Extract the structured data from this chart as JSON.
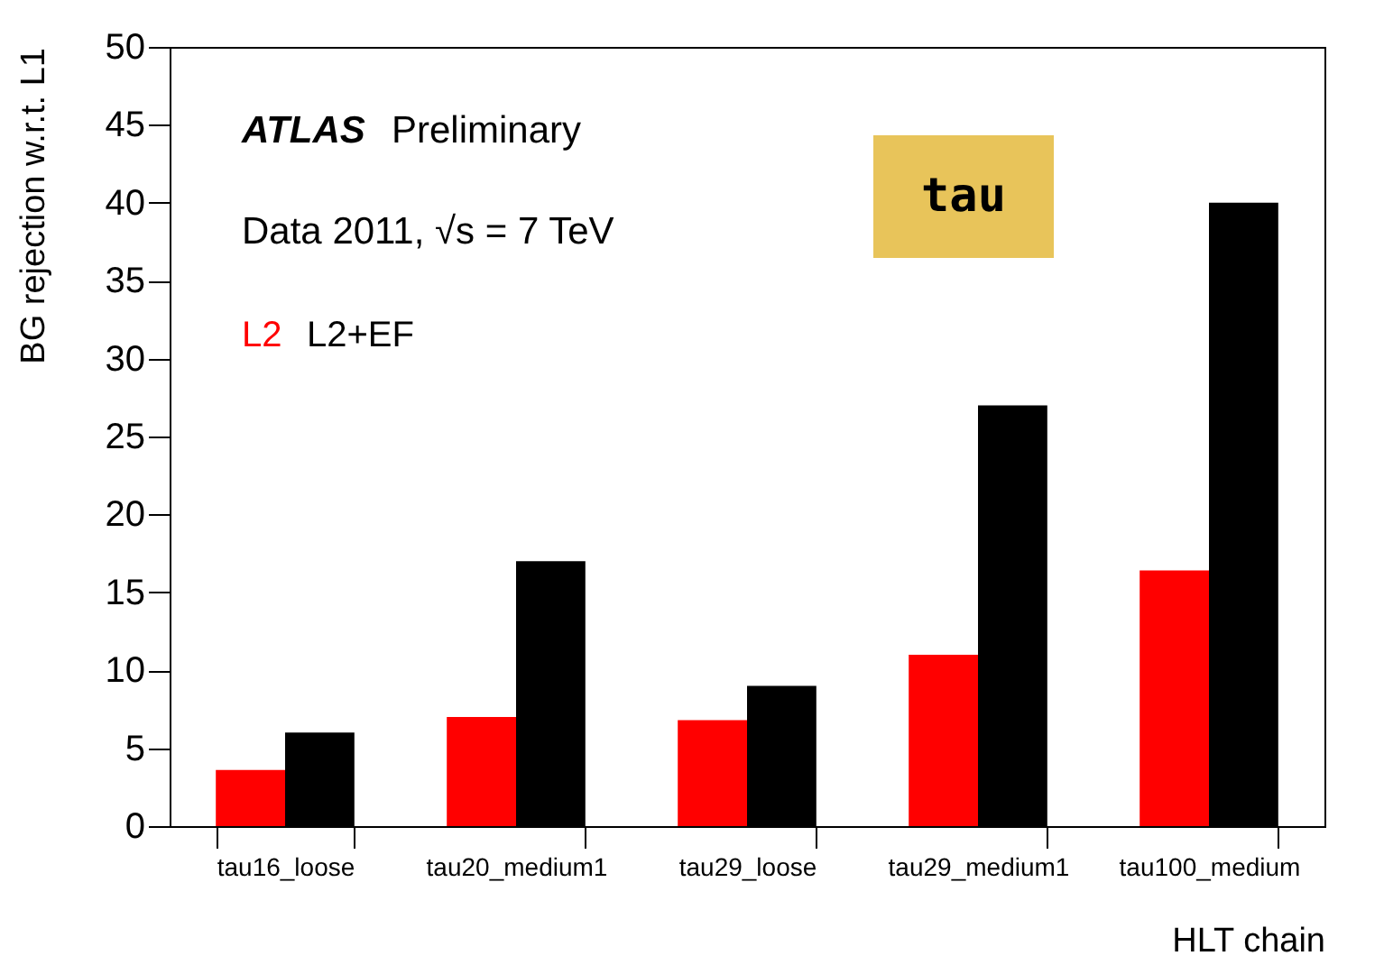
{
  "chart_data": {
    "type": "bar",
    "categories": [
      "tau16_loose",
      "tau20_medium1",
      "tau29_loose",
      "tau29_medium1",
      "tau100_medium"
    ],
    "series": [
      {
        "name": "L2",
        "color": "#ff0000",
        "values": [
          3.6,
          7.0,
          6.8,
          11.0,
          16.4
        ]
      },
      {
        "name": "L2+EF",
        "color": "#000000",
        "values": [
          6.0,
          17.0,
          9.0,
          27.0,
          40.0
        ]
      }
    ],
    "xlabel": "HLT chain",
    "ylabel": "BG rejection w.r.t. L1",
    "ylim": [
      0,
      50
    ],
    "yticks": [
      0,
      5,
      10,
      15,
      20,
      25,
      30,
      35,
      40,
      45,
      50
    ],
    "grid": false,
    "legend": "top left",
    "annotations": [
      "ATLAS Preliminary",
      "Data 2011, √s = 7 TeV",
      "tau"
    ]
  }
}
